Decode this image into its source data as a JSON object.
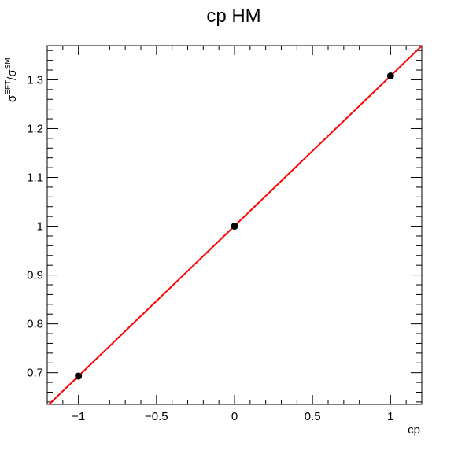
{
  "chart_data": {
    "type": "scatter",
    "title": "cp HM",
    "xlabel": "cp",
    "ylabel": {
      "base1": "σ",
      "sup1": "EFT",
      "sep": "/",
      "base2": "σ",
      "sup2": "SM"
    },
    "xlim": [
      -1.2,
      1.2
    ],
    "ylim": [
      0.635,
      1.37
    ],
    "x_ticks": [
      -1,
      -0.5,
      0,
      0.5,
      1
    ],
    "x_tick_labels": [
      "−1",
      "−0.5",
      "0",
      "0.5",
      "1"
    ],
    "y_ticks": [
      0.7,
      0.8,
      0.9,
      1.0,
      1.1,
      1.2,
      1.3
    ],
    "y_tick_labels": [
      "0.7",
      "0.8",
      "0.9",
      "1",
      "1.1",
      "1.2",
      "1.3"
    ],
    "grid": false,
    "series": [
      {
        "x": [
          -1,
          0,
          1
        ],
        "y": [
          0.693,
          1.0,
          1.308
        ],
        "marker": "circle",
        "color": "#000000"
      }
    ],
    "fit": {
      "type": "line",
      "color": "#ff0000",
      "slope": 0.3075,
      "intercept": 1.0005
    }
  }
}
